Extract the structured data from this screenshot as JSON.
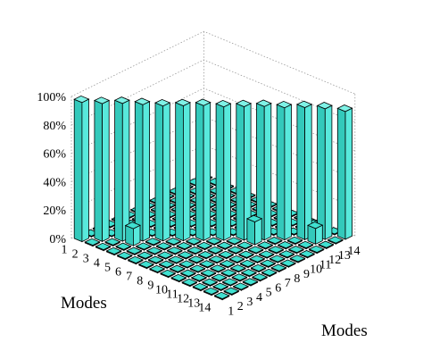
{
  "chart_data": {
    "type": "bar3d",
    "title": "",
    "xlabel": "Modes",
    "ylabel": "Modes",
    "zlim": [
      0,
      100
    ],
    "z_ticks": [
      "0%",
      "20%",
      "40%",
      "60%",
      "80%",
      "100%"
    ],
    "x_categories": [
      "1",
      "2",
      "3",
      "4",
      "5",
      "6",
      "7",
      "8",
      "9",
      "10",
      "11",
      "12",
      "13",
      "14"
    ],
    "y_categories": [
      "1",
      "2",
      "3",
      "4",
      "5",
      "6",
      "7",
      "8",
      "9",
      "10",
      "11",
      "12",
      "13",
      "14"
    ],
    "diagonal_values": [
      98,
      97,
      97,
      96,
      95,
      95,
      95,
      94,
      94,
      94,
      93,
      93,
      92,
      90
    ],
    "off_diagonal": [
      {
        "i": 4,
        "j": 3,
        "value": 12
      },
      {
        "i": 3,
        "j": 4,
        "value": 7
      },
      {
        "i": 10,
        "j": 9,
        "value": 16
      },
      {
        "i": 9,
        "j": 10,
        "value": 9
      },
      {
        "i": 13,
        "j": 12,
        "value": 11
      },
      {
        "i": 12,
        "j": 13,
        "value": 6
      }
    ],
    "grid": true,
    "colors": {
      "bar": "#40e0d0",
      "edge": "#000000"
    }
  }
}
